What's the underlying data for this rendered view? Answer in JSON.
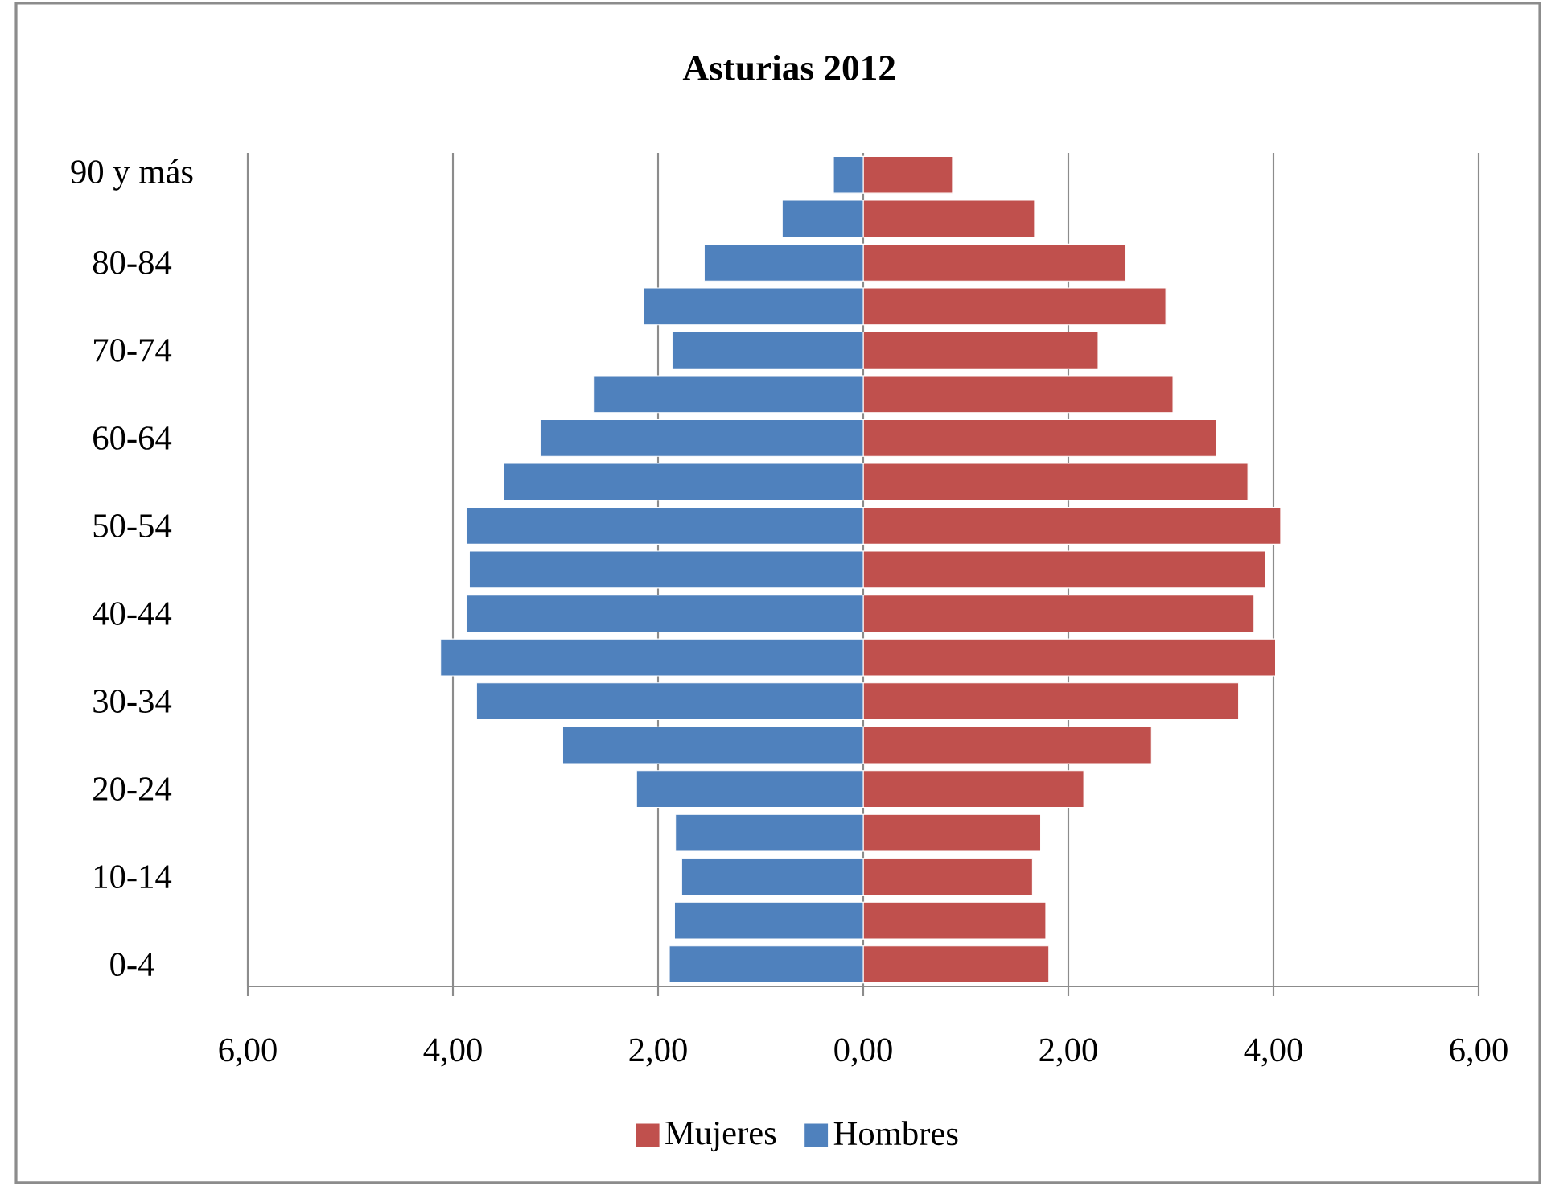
{
  "chart_data": {
    "type": "bar",
    "orientation": "horizontal",
    "stacked": true,
    "title": "Asturias 2012",
    "categories": [
      "90 y más",
      null,
      "80-84",
      null,
      "70-74",
      null,
      "60-64",
      null,
      "50-54",
      null,
      "40-44",
      null,
      "30-34",
      null,
      "20-24",
      null,
      "10-14",
      null,
      "0-4"
    ],
    "series": [
      {
        "name": "Mujeres",
        "color": "#c0504d",
        "values": [
          0.87,
          1.67,
          2.56,
          2.95,
          2.29,
          3.02,
          3.44,
          3.75,
          4.07,
          3.92,
          3.81,
          4.02,
          3.66,
          2.81,
          2.15,
          1.73,
          1.65,
          1.78,
          1.81
        ]
      },
      {
        "name": "Hombres",
        "color": "#4f81bd",
        "values": [
          -0.29,
          -0.79,
          -1.55,
          -2.14,
          -1.86,
          -2.63,
          -3.15,
          -3.51,
          -3.87,
          -3.84,
          -3.87,
          -4.12,
          -3.77,
          -2.93,
          -2.21,
          -1.83,
          -1.77,
          -1.84,
          -1.89
        ]
      }
    ],
    "xlim": [
      -6,
      6
    ],
    "xticks": [
      {
        "value": -6,
        "label": "6,00"
      },
      {
        "value": -4,
        "label": "4,00"
      },
      {
        "value": -2,
        "label": "2,00"
      },
      {
        "value": 0,
        "label": "0,00"
      },
      {
        "value": 2,
        "label": "2,00"
      },
      {
        "value": 4,
        "label": "4,00"
      },
      {
        "value": 6,
        "label": "6,00"
      }
    ],
    "grid": "x",
    "legend": "bottom"
  }
}
